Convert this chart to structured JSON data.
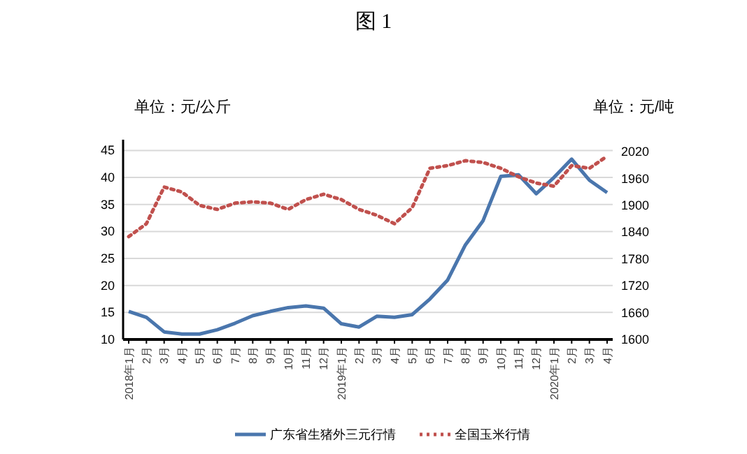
{
  "chart_data": {
    "type": "line",
    "title": "图 1",
    "ylabel": "单位：元/公斤",
    "y2label": "单位：元/吨",
    "categories": [
      "2018年1月",
      "2月",
      "3月",
      "4月",
      "5月",
      "6月",
      "7月",
      "8月",
      "9月",
      "10月",
      "11月",
      "12月",
      "2019年1月",
      "2月",
      "3月",
      "4月",
      "5月",
      "6月",
      "7月",
      "8月",
      "9月",
      "10月",
      "11月",
      "12月",
      "2020年1月",
      "2月",
      "3月",
      "4月"
    ],
    "series": [
      {
        "name": "广东省生猪外三元行情",
        "color": "#4a76ad",
        "line_style": "solid",
        "values": [
          15.2,
          14.1,
          11.4,
          11.0,
          11.0,
          11.8,
          13.0,
          14.4,
          15.2,
          15.9,
          16.2,
          15.8,
          12.9,
          12.3,
          14.3,
          14.1,
          14.6,
          17.5,
          21,
          27.5,
          32,
          40.2,
          40.5,
          37,
          40,
          43.4,
          39.5,
          37.2
        ]
      },
      {
        "name": "全国玉米行情",
        "color": "#c0504d",
        "line_style": "dotted",
        "axis": "y2",
        "values": [
          1830,
          1859,
          1941,
          1930,
          1900,
          1891,
          1905,
          1908,
          1905,
          1891,
          1913,
          1925,
          1913,
          1891,
          1878,
          1859,
          1895,
          1983,
          1989,
          2000,
          1996,
          1983,
          1964,
          1950,
          1943,
          1989,
          1983,
          2010
        ]
      }
    ],
    "ylim": [
      10,
      47
    ],
    "yticks": [
      10,
      15,
      20,
      25,
      30,
      35,
      40,
      45
    ],
    "y2lim": [
      1600,
      2047
    ],
    "y2ticks": [
      1600,
      1660,
      1720,
      1780,
      1840,
      1900,
      1960,
      2020
    ],
    "grid": "y",
    "legend": "bottom",
    "marker": "none"
  }
}
